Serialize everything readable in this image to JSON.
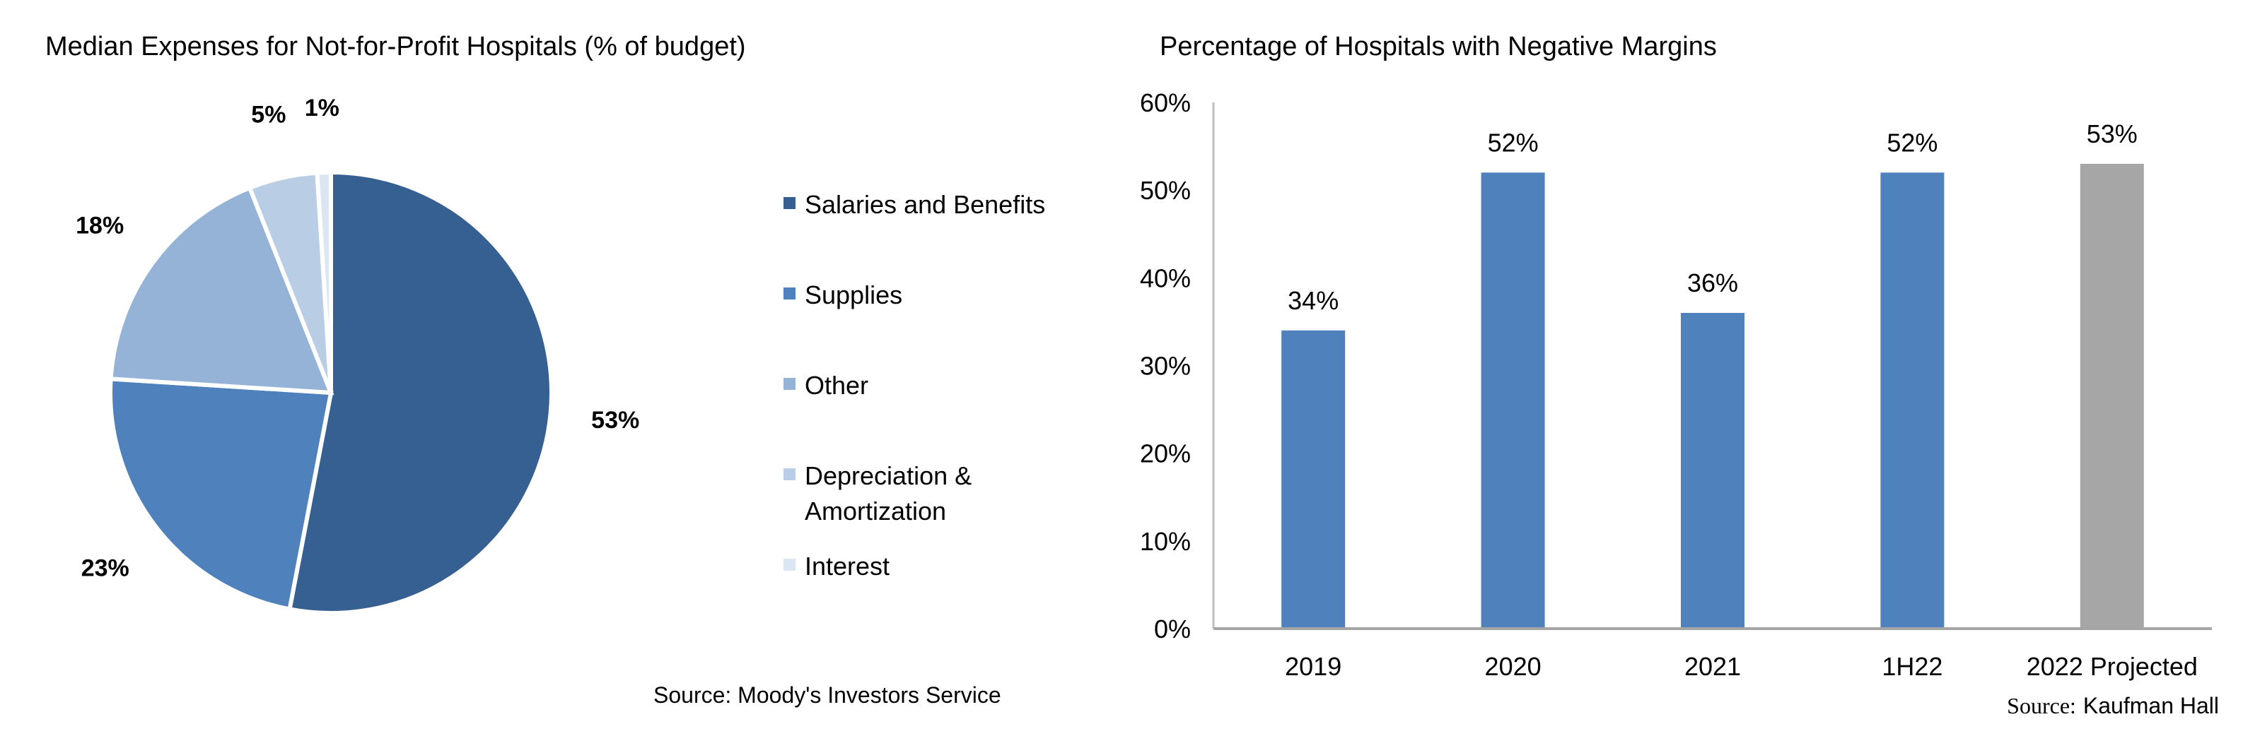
{
  "chart_data": [
    {
      "type": "pie",
      "title": "Median Expenses for Not-for-Profit Hospitals (% of budget)",
      "categories": [
        "Salaries and Benefits",
        "Supplies",
        "Other",
        "Depreciation & Amortization",
        "Interest"
      ],
      "values": [
        53,
        23,
        18,
        5,
        1
      ],
      "labels": [
        "53%",
        "23%",
        "18%",
        "5%",
        "1%"
      ],
      "legend_lines": [
        [
          "Salaries and Benefits"
        ],
        [
          "Supplies"
        ],
        [
          "Other"
        ],
        [
          "Depreciation &",
          "Amortization"
        ],
        [
          "Interest"
        ]
      ],
      "colors": [
        "#376092",
        "#4f81bd",
        "#95b3d7",
        "#b9cde5",
        "#dce6f2"
      ],
      "legend_position": "right",
      "source": "Source: Moody's Investors Service"
    },
    {
      "type": "bar",
      "title": "Percentage of Hospitals with Negative Margins",
      "categories": [
        "2019",
        "2020",
        "2021",
        "1H22",
        "2022 Projected"
      ],
      "values": [
        34,
        52,
        36,
        52,
        53
      ],
      "data_labels": [
        "34%",
        "52%",
        "36%",
        "52%",
        "53%"
      ],
      "colors": [
        "#4f81bd",
        "#4f81bd",
        "#4f81bd",
        "#4f81bd",
        "#a6a6a6"
      ],
      "ylim": [
        0,
        60
      ],
      "yticks": [
        "0%",
        "10%",
        "20%",
        "30%",
        "40%",
        "50%",
        "60%"
      ],
      "grid": false,
      "source_prefix": "Source:",
      "source_name": "Kaufman Hall"
    }
  ]
}
